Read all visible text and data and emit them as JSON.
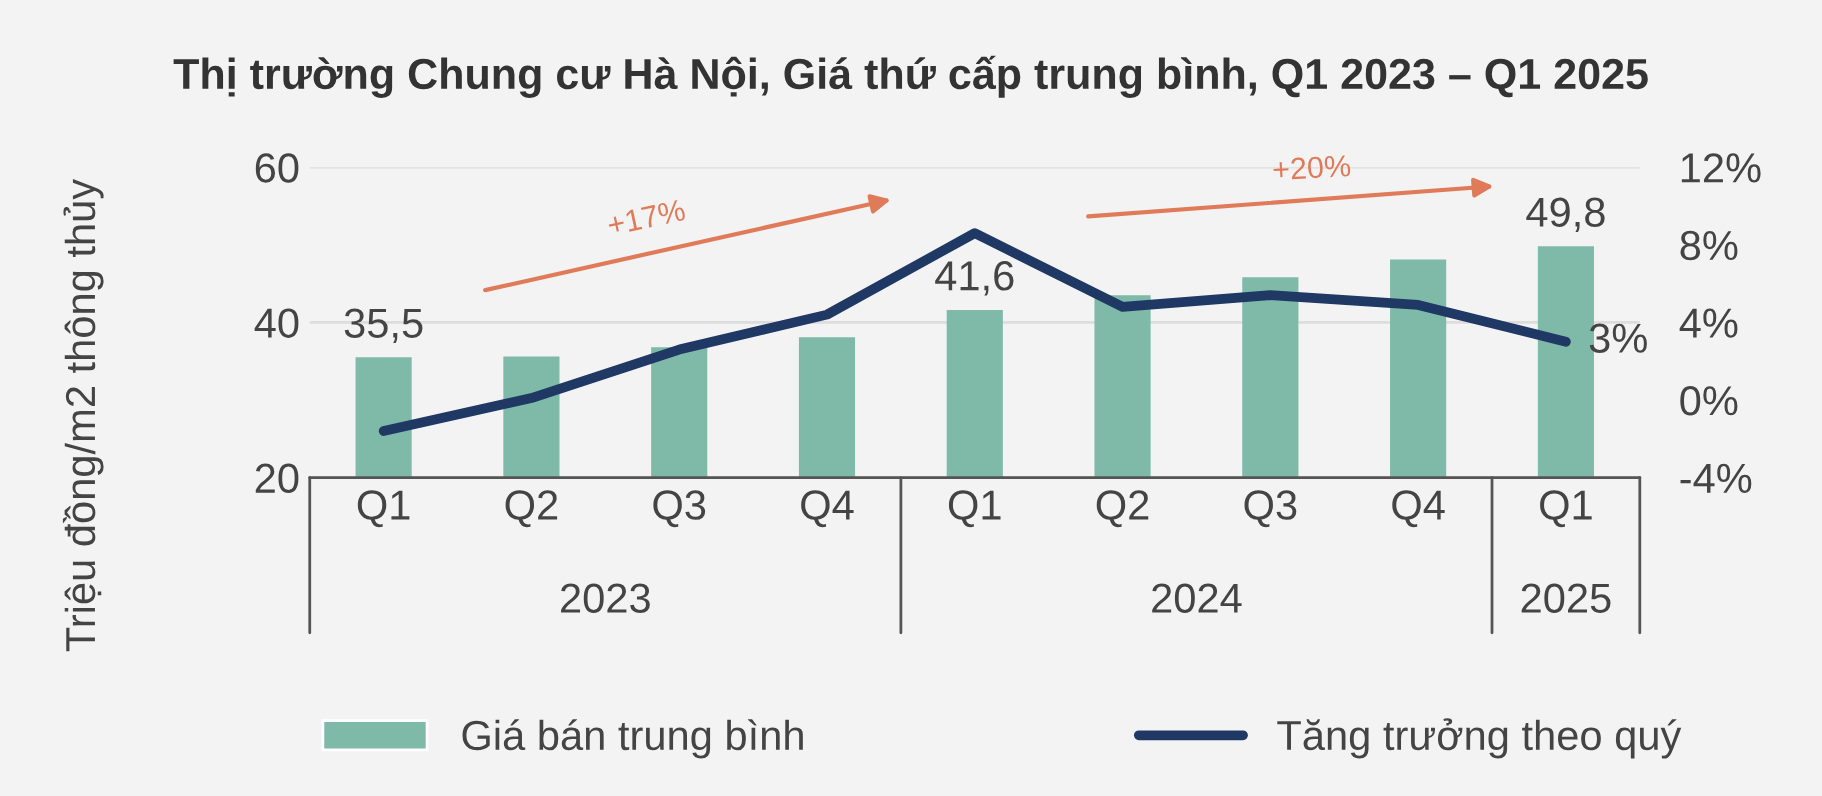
{
  "chart_data": {
    "type": "bar",
    "title": "Thị trường Chung cư Hà Nội, Giá thứ cấp trung bình, Q1 2023 – Q1 2025",
    "ylabel": "Triệu đồng/m2 thông thủy",
    "categories": [
      "Q1",
      "Q2",
      "Q3",
      "Q4",
      "Q1",
      "Q2",
      "Q3",
      "Q4",
      "Q1"
    ],
    "series": [
      {
        "name": "Giá bán trung bình",
        "color": "#7fbaa9",
        "values": [
          35.5,
          35.6,
          36.8,
          38.1,
          41.6,
          43.5,
          45.8,
          48.1,
          49.8
        ],
        "value_labels": [
          "35,5",
          null,
          null,
          null,
          "41,6",
          null,
          null,
          null,
          "49,8"
        ]
      },
      {
        "name": "Tăng trưởng theo quý",
        "type": "line",
        "axis": "y2",
        "color": "#1f3864",
        "values": [
          -1.6,
          0.1,
          2.6,
          4.4,
          8.6,
          4.8,
          5.4,
          4.9,
          3
        ],
        "value_labels": [
          null,
          null,
          null,
          null,
          null,
          null,
          null,
          null,
          "3%"
        ]
      }
    ],
    "ylim": [
      20,
      60
    ],
    "yticks": [
      20,
      40,
      60
    ],
    "y2lim": [
      -4,
      12
    ],
    "y2ticks": [
      {
        "value": -4,
        "label": "-4%"
      },
      {
        "value": 0,
        "label": "0%"
      },
      {
        "value": 4,
        "label": "4%"
      },
      {
        "value": 8,
        "label": "8%"
      },
      {
        "value": 12,
        "label": "12%"
      }
    ],
    "annotations": [
      "+17%",
      "+20%",
      "2023",
      "2024",
      "2025"
    ],
    "grid": "y",
    "legend": "bottom",
    "marker": "none",
    "line_style": "solid"
  }
}
